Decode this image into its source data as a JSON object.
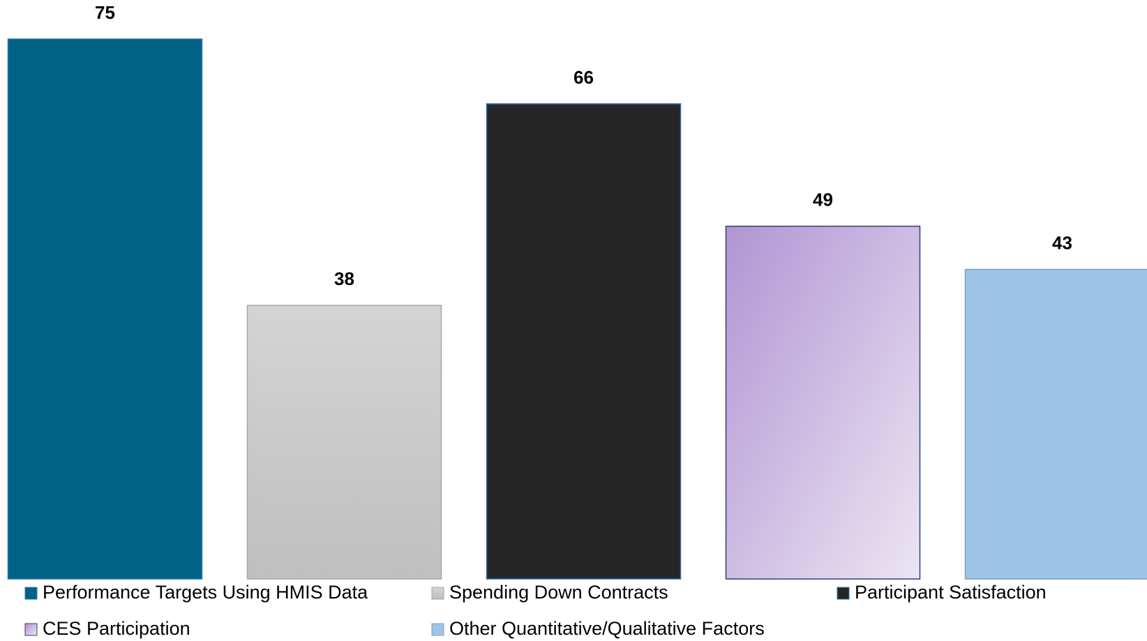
{
  "chart_data": {
    "type": "bar",
    "series": [
      {
        "name": "Performance Targets Using HMIS Data",
        "color": "#006385",
        "values": [
          75
        ]
      },
      {
        "name": "Spending Down Contracts",
        "color": "#c9c9c9",
        "values": [
          38
        ]
      },
      {
        "name": "Participant Satisfaction",
        "color": "#262626",
        "values": [
          66
        ]
      },
      {
        "name": "CES Participation",
        "color": "#c9b3de",
        "values": [
          49
        ]
      },
      {
        "name": "Other Quantitative/Qualitative Factors",
        "color": "#9dc3e6",
        "values": [
          43
        ]
      }
    ]
  }
}
